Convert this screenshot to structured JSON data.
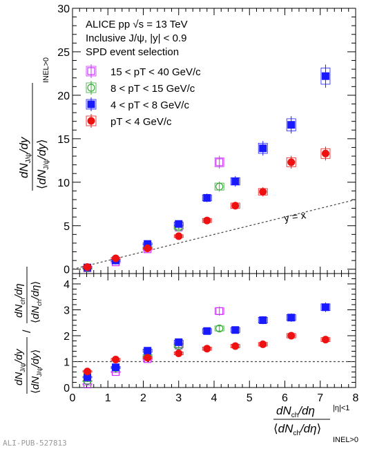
{
  "chart_data": {
    "type": "scatter",
    "annotations": {
      "line1": "ALICE pp √s = 13 TeV",
      "line2": "Inclusive J/ψ, |y| < 0.9",
      "line3": "SPD event selection",
      "diagonal_label": "y = x"
    },
    "watermark": "ALI-PUB-527813",
    "panels": [
      {
        "name": "top",
        "ylabel": "dN_J/ψ/dy / ⟨dN_J/ψ/dy⟩ INEL>0",
        "xlim": [
          0,
          8
        ],
        "ylim": [
          -0.5,
          30
        ],
        "yticks": [
          0,
          5,
          10,
          15,
          20,
          25,
          30
        ],
        "reference_line": "y = x"
      },
      {
        "name": "ratio",
        "ylabel": "(dN_J/ψ/dy / ⟨dN_J/ψ/dy⟩) / (dN_ch/dη / ⟨dN_ch/dη⟩)",
        "xlim": [
          0,
          8
        ],
        "ylim": [
          0,
          4.4
        ],
        "yticks": [
          0,
          1,
          2,
          3,
          4
        ],
        "reference_line": "y = 1"
      }
    ],
    "xlabel": "dN_ch/dη |η|<1 / ⟨dN_ch/dη⟩ INEL>0",
    "xticks": [
      0,
      1,
      2,
      3,
      4,
      5,
      6,
      7,
      8
    ],
    "legend_position": "top-left",
    "series": [
      {
        "name": "15 < pT < 40 GeV/c",
        "color": "#cc33ff",
        "marker": "open-square",
        "x": [
          0.42,
          1.22,
          2.12,
          3.0,
          4.15
        ],
        "y_top": [
          0.1,
          0.8,
          2.3,
          4.8,
          12.3
        ],
        "y_ratio": [
          0.12,
          0.6,
          1.1,
          1.62,
          2.95
        ]
      },
      {
        "name": "8 < pT < 15 GeV/c",
        "color": "#33aa33",
        "marker": "open-circle",
        "x": [
          0.42,
          1.22,
          2.12,
          3.0,
          4.15
        ],
        "y_top": [
          0.1,
          1.0,
          2.5,
          4.8,
          9.5
        ],
        "y_ratio": [
          0.25,
          0.75,
          1.22,
          1.6,
          2.28
        ]
      },
      {
        "name": "4 < pT < 8 GeV/c",
        "color": "#1a1aff",
        "marker": "filled-square",
        "x": [
          0.42,
          1.22,
          2.12,
          3.0,
          3.8,
          4.6,
          5.38,
          6.18,
          7.15
        ],
        "y_top": [
          0.2,
          1.0,
          2.9,
          5.2,
          8.2,
          10.1,
          13.9,
          16.6,
          22.2
        ],
        "y_ratio": [
          0.4,
          0.78,
          1.42,
          1.75,
          2.18,
          2.22,
          2.6,
          2.7,
          3.1
        ]
      },
      {
        "name": "pT < 4 GeV/c",
        "color": "#ee1111",
        "marker": "filled-circle",
        "x": [
          0.42,
          1.22,
          2.12,
          3.0,
          3.8,
          4.6,
          5.38,
          6.18,
          7.15
        ],
        "y_top": [
          0.25,
          1.25,
          2.4,
          3.8,
          5.6,
          7.3,
          8.9,
          12.3,
          13.3
        ],
        "y_ratio": [
          0.62,
          1.08,
          1.15,
          1.32,
          1.5,
          1.6,
          1.67,
          2.0,
          1.85
        ]
      }
    ]
  }
}
